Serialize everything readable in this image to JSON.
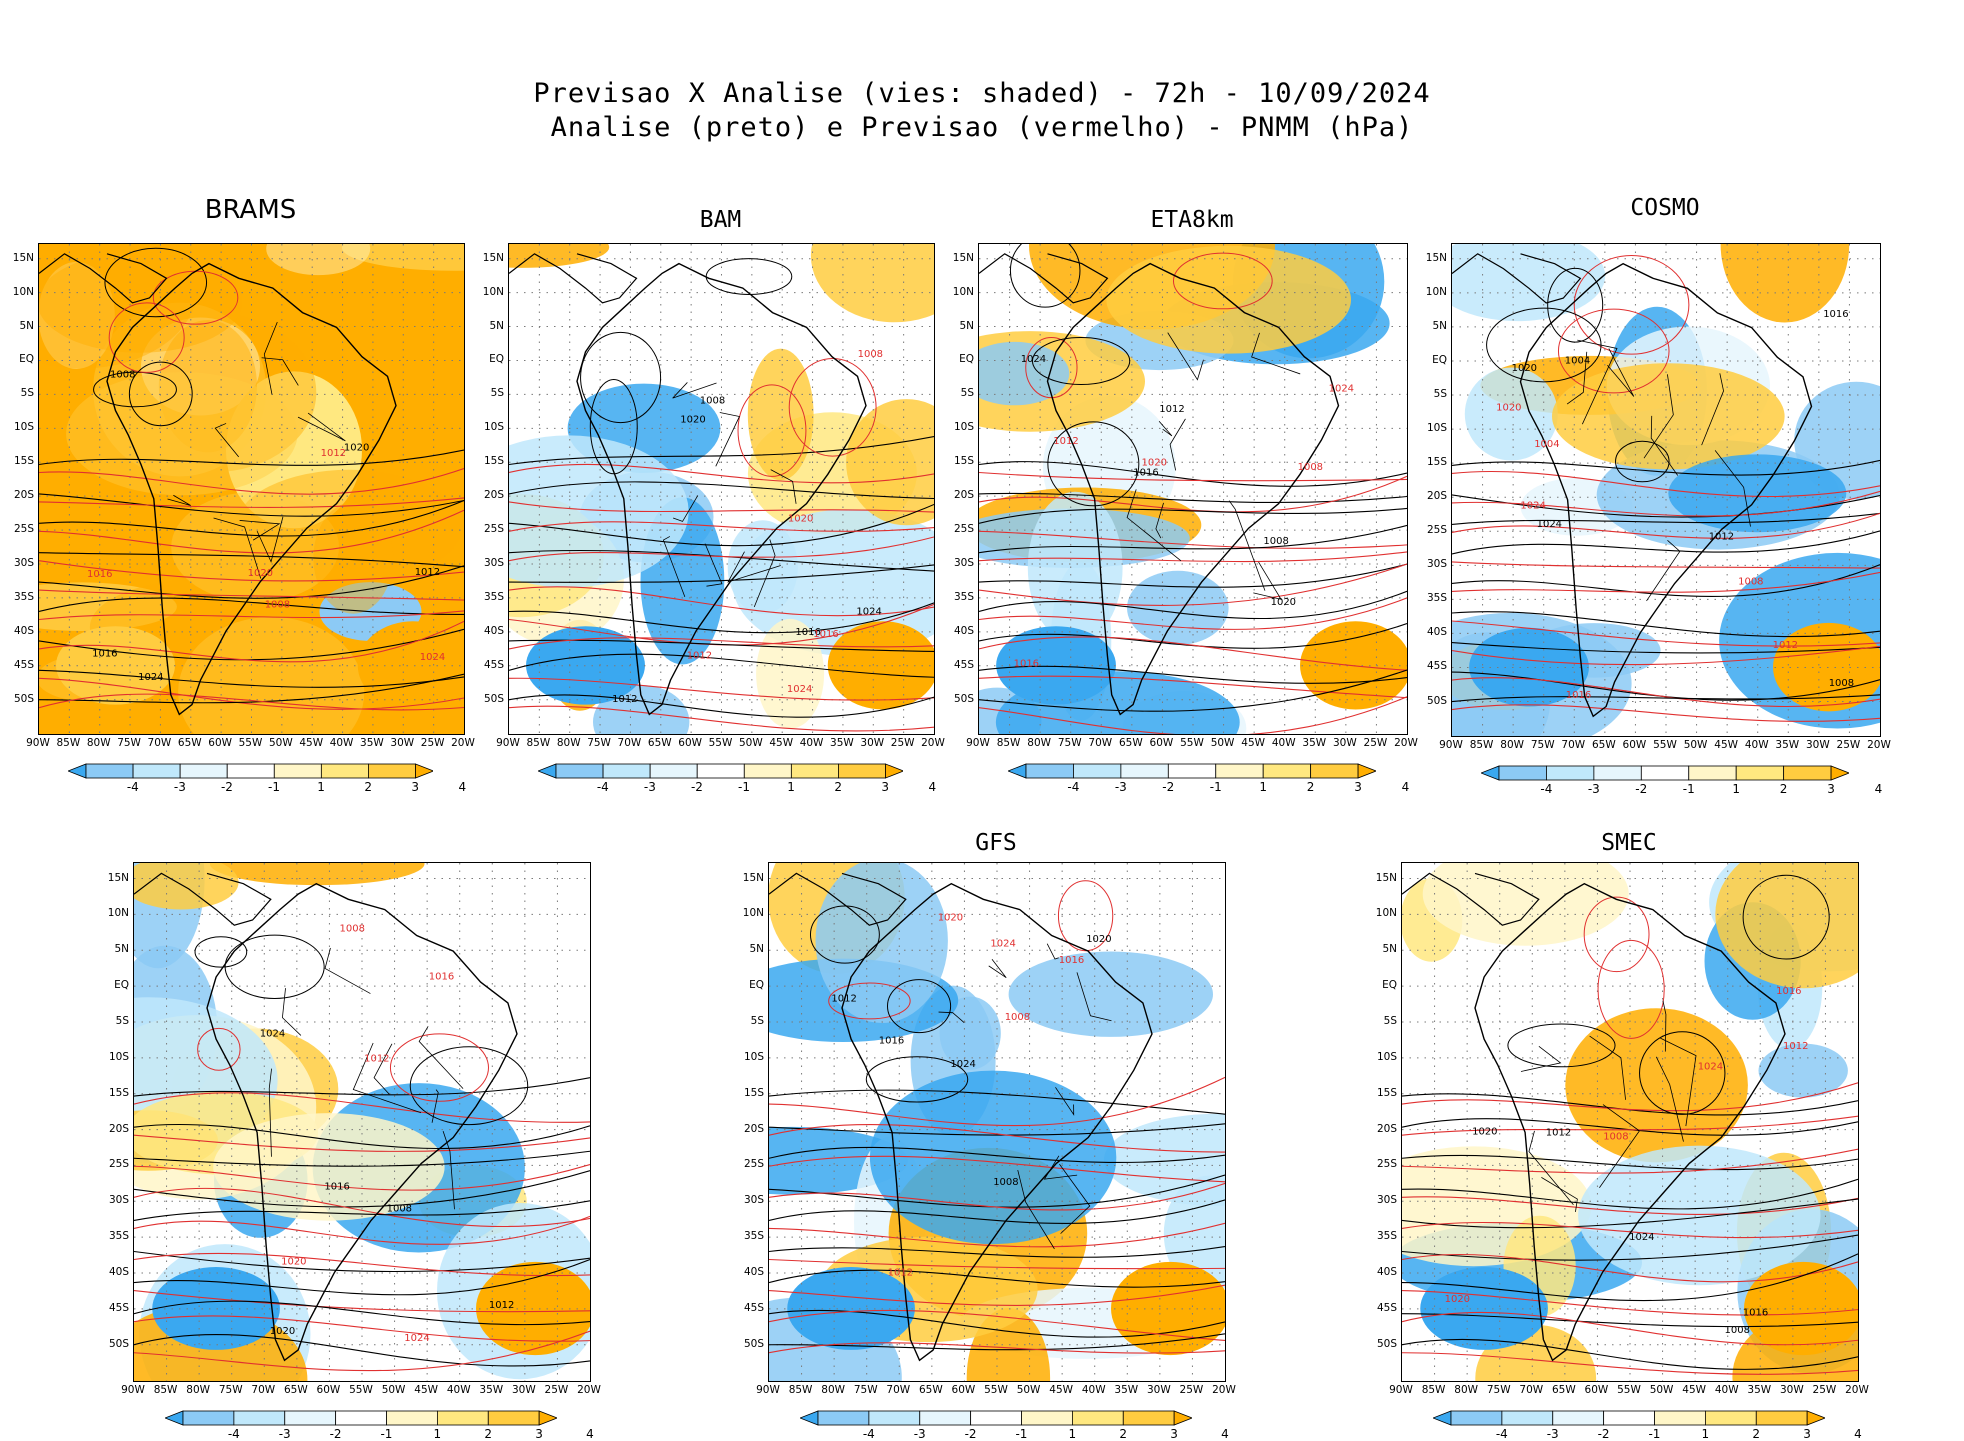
{
  "header": {
    "line1": "Previsao X Analise (vies: shaded) - 72h - 10/09/2024",
    "line2": "Analise (preto) e Previsao (vermelho) - PNMM (hPa)"
  },
  "lat_labels": [
    "15N",
    "10N",
    "5N",
    "EQ",
    "5S",
    "10S",
    "15S",
    "20S",
    "25S",
    "30S",
    "35S",
    "40S",
    "45S",
    "50S"
  ],
  "lon_labels": [
    "90W",
    "85W",
    "80W",
    "75W",
    "70W",
    "65W",
    "60W",
    "55W",
    "50W",
    "45W",
    "40W",
    "35W",
    "30W",
    "25W",
    "20W"
  ],
  "colorbar_labels": [
    "-4",
    "-3",
    "-2",
    "-1",
    "1",
    "2",
    "3",
    "4"
  ],
  "colors": {
    "bias": [
      "#3aa8f0",
      "#8ccaf5",
      "#c0e8fb",
      "#e6f6fd",
      "#ffffff",
      "#fff6c8",
      "#ffe880",
      "#ffcc40",
      "#ffae00"
    ],
    "analysis_contour": "#000000",
    "forecast_contour": "#e03030",
    "grid": "#7a7a7a"
  },
  "panels": [
    {
      "title": "BRAMS",
      "bias": "warm",
      "isobars": [
        "1012",
        "1008",
        "1016",
        "1020",
        "1024"
      ]
    },
    {
      "title": "BAM",
      "bias": "mixed",
      "isobars": [
        "1012",
        "1016",
        "1020",
        "1024",
        "1008"
      ]
    },
    {
      "title": "ETA8km",
      "bias": "cool",
      "isobars": [
        "1012",
        "1016",
        "1020",
        "1024",
        "1008"
      ]
    },
    {
      "title": "COSMO",
      "bias": "cool",
      "isobars": [
        "1012",
        "1016",
        "1020",
        "1024",
        "1008",
        "1004"
      ]
    },
    {
      "title": "",
      "bias": "mixed",
      "isobars": [
        "1012",
        "1008",
        "1016",
        "1020",
        "1024"
      ]
    },
    {
      "title": "GFS",
      "bias": "cool",
      "isobars": [
        "1012",
        "1016",
        "1020",
        "1024",
        "1008"
      ]
    },
    {
      "title": "SMEC",
      "bias": "mixed",
      "isobars": [
        "1012",
        "1016",
        "1020",
        "1024",
        "1008"
      ]
    }
  ]
}
